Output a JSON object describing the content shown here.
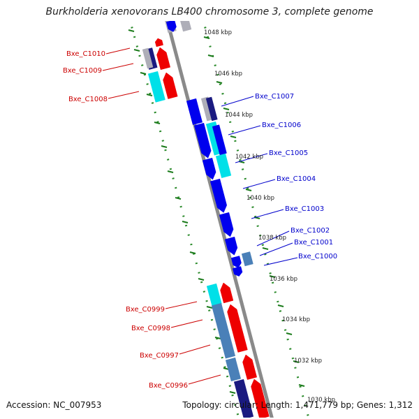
{
  "title": "Burkholderia xenovorans LB400 chromosome 3, complete genome",
  "footer": {
    "accession": "Accession: NC_007953",
    "summary": "Topology: circular; Length: 1,471,779 bp; Genes: 1,312"
  },
  "colors": {
    "backbone": "#8a8a8a",
    "tick_major": "#1a7a1a",
    "tick_dot": "#2a8a2a",
    "label_forward": "#0000cc",
    "label_reverse": "#cc0000",
    "gene_blue": "#0000ee",
    "gene_red": "#ee0000",
    "gene_cyan": "#00e0e8",
    "gene_steel": "#4a80b8",
    "gene_navy": "#1a1a80",
    "gene_grey": "#aeaeb8"
  },
  "scale_labels": [
    "1048 kbp",
    "1046 kbp",
    "1044 kbp",
    "1042 kbp",
    "1040 kbp",
    "1038 kbp",
    "1036 kbp",
    "1034 kbp",
    "1032 kbp",
    "1030 kbp"
  ],
  "gene_labels": {
    "reverse": [
      "Bxe_C1010",
      "Bxe_C1009",
      "Bxe_C1008",
      "Bxe_C0999",
      "Bxe_C0998",
      "Bxe_C0997",
      "Bxe_C0996"
    ],
    "forward": [
      "Bxe_C1007",
      "Bxe_C1006",
      "Bxe_C1005",
      "Bxe_C1004",
      "Bxe_C1003",
      "Bxe_C1002",
      "Bxe_C1001",
      "Bxe_C1000"
    ]
  }
}
